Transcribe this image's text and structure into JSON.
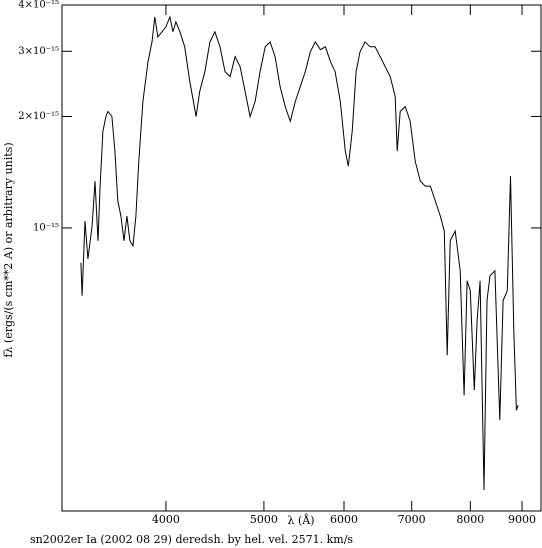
{
  "chart_data": {
    "type": "line",
    "title": "sn2002er Ia (2002 08 29) deredsh. by hel. vel.  2571. km/s",
    "xlabel": "λ (Å)",
    "ylabel": "fλ (ergs/(s cm**2 A) or arbitrary units)",
    "xlog": true,
    "ylog": true,
    "xlim": [
      3157,
      9397
    ],
    "ylim": [
      1.72e-16,
      4e-15
    ],
    "xticks": [
      4000,
      5000,
      6000,
      7000,
      8000,
      9000
    ],
    "yticks": [
      {
        "value": 1e-15,
        "label": "10⁻¹⁵"
      },
      {
        "value": 2e-15,
        "label": "2×10⁻¹⁵"
      },
      {
        "value": 3e-15,
        "label": "3×10⁻¹⁵"
      },
      {
        "value": 4e-15,
        "label": "4×10⁻¹⁵"
      }
    ],
    "color": "#000000",
    "x": [
      3296,
      3305,
      3327,
      3349,
      3381,
      3403,
      3427,
      3443,
      3465,
      3489,
      3505,
      3537,
      3561,
      3585,
      3610,
      3636,
      3660,
      3685,
      3711,
      3736,
      3760,
      3796,
      3840,
      3875,
      3900,
      3927,
      3964,
      4000,
      4036,
      4064,
      4092,
      4129,
      4175,
      4223,
      4284,
      4320,
      4371,
      4421,
      4472,
      4524,
      4576,
      4629,
      4682,
      4736,
      4790,
      4845,
      4901,
      4957,
      5014,
      5071,
      5129,
      5188,
      5248,
      5309,
      5370,
      5432,
      5494,
      5557,
      5621,
      5686,
      5751,
      5818,
      5880,
      5950,
      6018,
      6059,
      6113,
      6168,
      6223,
      6295,
      6368,
      6441,
      6515,
      6590,
      6666,
      6742,
      6773,
      6820,
      6898,
      6977,
      7057,
      7138,
      7220,
      7303,
      7387,
      7472,
      7540,
      7589,
      7641,
      7729,
      7817,
      7888,
      7941,
      8000,
      8072,
      8125,
      8180,
      8254,
      8310,
      8367,
      8461,
      8556,
      8620,
      8702,
      8766,
      8833,
      8885,
      8920
    ],
    "values": [
      8.05e-16,
      6.56e-16,
      1.044e-15,
      8.25e-16,
      1.012e-15,
      1.338e-15,
      9.23e-16,
      1.297e-15,
      1.823e-15,
      2e-15,
      2.063e-15,
      2e-15,
      1.611e-15,
      1.182e-15,
      1.077e-15,
      9.23e-16,
      1.077e-15,
      9.23e-16,
      8.95e-16,
      1.077e-15,
      1.514e-15,
      2.195e-15,
      2.81e-15,
      3.18e-15,
      3.715e-15,
      3.28e-15,
      3.385e-15,
      3.49e-15,
      3.715e-15,
      3.385e-15,
      3.6e-15,
      3.385e-15,
      3.085e-15,
      2.485e-15,
      2e-15,
      2.336e-15,
      2.643e-15,
      3.18e-15,
      3.385e-15,
      3.085e-15,
      2.643e-15,
      2.563e-15,
      2.9e-15,
      2.726e-15,
      2.336e-15,
      2e-15,
      2.195e-15,
      2.643e-15,
      3.085e-15,
      3.18e-15,
      2.9e-15,
      2.409e-15,
      2.128e-15,
      1.94e-15,
      2.195e-15,
      2.409e-15,
      2.643e-15,
      2.99e-15,
      3.18e-15,
      3.03e-15,
      3.085e-15,
      2.81e-15,
      2.643e-15,
      2.195e-15,
      1.611e-15,
      1.468e-15,
      1.823e-15,
      2.643e-15,
      2.99e-15,
      3.18e-15,
      3.085e-15,
      3.085e-15,
      2.9e-15,
      2.726e-15,
      2.563e-15,
      2.264e-15,
      1.611e-15,
      2.063e-15,
      2.128e-15,
      1.94e-15,
      1.514e-15,
      1.338e-15,
      1.297e-15,
      1.297e-15,
      1.182e-15,
      1.077e-15,
      9.81e-16,
      4.53e-16,
      9.23e-16,
      9.81e-16,
      7.66e-16,
      3.53e-16,
      7.2e-16,
      6.77e-16,
      3.65e-16,
      5.62e-16,
      7.2e-16,
      1.96e-16,
      6.37e-16,
      7.43e-16,
      7.66e-16,
      3.03e-16,
      6.37e-16,
      6.77e-16,
      1.38e-15,
      5.29e-16,
      3.22e-16,
      3.32e-16
    ]
  }
}
